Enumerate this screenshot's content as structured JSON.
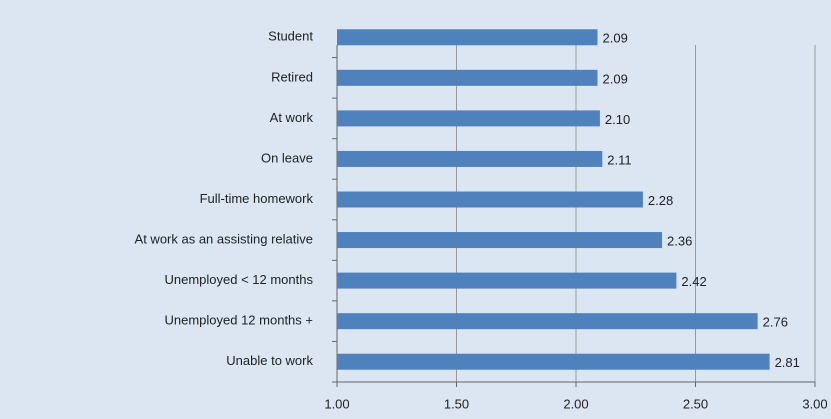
{
  "chart_data": {
    "type": "bar",
    "orientation": "horizontal",
    "categories": [
      "Student",
      "Retired",
      "At work",
      "On leave",
      "Full-time homework",
      "At work as an assisting relative",
      "Unemployed < 12 months",
      "Unemployed 12 months +",
      "Unable to work"
    ],
    "values": [
      2.09,
      2.09,
      2.1,
      2.11,
      2.28,
      2.36,
      2.42,
      2.76,
      2.81
    ],
    "value_labels": [
      "2.09",
      "2.09",
      "2.10",
      "2.11",
      "2.28",
      "2.36",
      "2.42",
      "2.76",
      "2.81"
    ],
    "color": "#4f81bd",
    "xlim": [
      1,
      3
    ],
    "xticks": [
      {
        "value": 1,
        "label": "1.00"
      },
      {
        "value": 1.5,
        "label": "1.50"
      },
      {
        "value": 2,
        "label": "2.00"
      },
      {
        "value": 2.5,
        "label": "2.50"
      },
      {
        "value": 3,
        "label": "3.00"
      }
    ],
    "grid": true
  }
}
